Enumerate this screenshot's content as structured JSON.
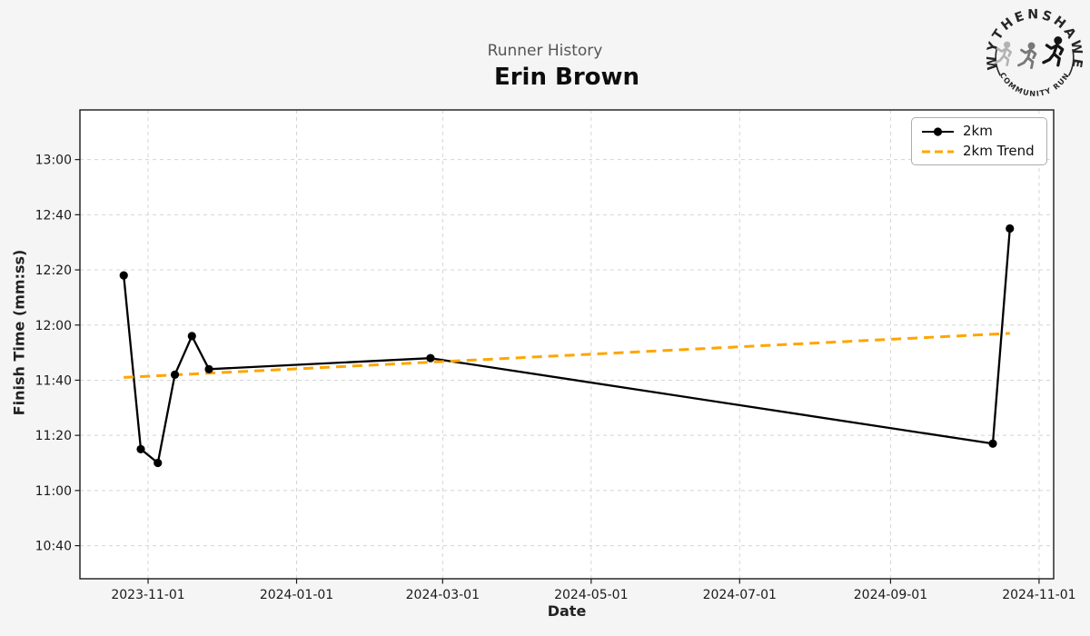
{
  "colors": {
    "figure_bg": "#f5f5f5",
    "plot_bg": "#ffffff",
    "grid": "#d4d4d4",
    "axis": "#1a1a1a",
    "tick_label": "#1a1a1a",
    "subtitle_text": "#555555",
    "series_2km": "#000000",
    "trend": "#FFA500"
  },
  "logo": {
    "top_text": "WYTHENSHAWE",
    "bottom_text": "COMMUNITY RUN"
  },
  "chart_data": {
    "type": "line",
    "subtitle": "Runner History",
    "title": "Erin Brown",
    "xlabel": "Date",
    "ylabel": "Finish Time (mm:ss)",
    "x_ticks": [
      "2023-11-01",
      "2024-01-01",
      "2024-03-01",
      "2024-05-01",
      "2024-07-01",
      "2024-09-01",
      "2024-11-01"
    ],
    "y_ticks": [
      "13:00",
      "12:40",
      "12:20",
      "12:00",
      "11:40",
      "11:20",
      "11:00",
      "10:40"
    ],
    "xlim": [
      "2023-10-04",
      "2024-11-07"
    ],
    "ylim": [
      "10:28",
      "13:18"
    ],
    "grid": true,
    "legend": {
      "position": "upper right",
      "items": [
        {
          "label": "2km",
          "color": "#000000",
          "line": "solid",
          "marker": "circle"
        },
        {
          "label": "2km Trend",
          "color": "#FFA500",
          "line": "dashed",
          "marker": "none"
        }
      ]
    },
    "series": [
      {
        "name": "2km",
        "style": "solid-with-markers",
        "color": "#000000",
        "points": [
          {
            "date": "2023-10-22",
            "time": "12:18"
          },
          {
            "date": "2023-10-29",
            "time": "11:15"
          },
          {
            "date": "2023-11-05",
            "time": "11:10"
          },
          {
            "date": "2023-11-12",
            "time": "11:42"
          },
          {
            "date": "2023-11-19",
            "time": "11:56"
          },
          {
            "date": "2023-11-26",
            "time": "11:44"
          },
          {
            "date": "2024-02-25",
            "time": "11:48"
          },
          {
            "date": "2024-10-13",
            "time": "11:17"
          },
          {
            "date": "2024-10-20",
            "time": "12:35"
          }
        ]
      },
      {
        "name": "2km Trend",
        "style": "dashed",
        "color": "#FFA500",
        "points": [
          {
            "date": "2023-10-22",
            "time": "11:41"
          },
          {
            "date": "2024-10-20",
            "time": "11:57"
          }
        ]
      }
    ]
  }
}
